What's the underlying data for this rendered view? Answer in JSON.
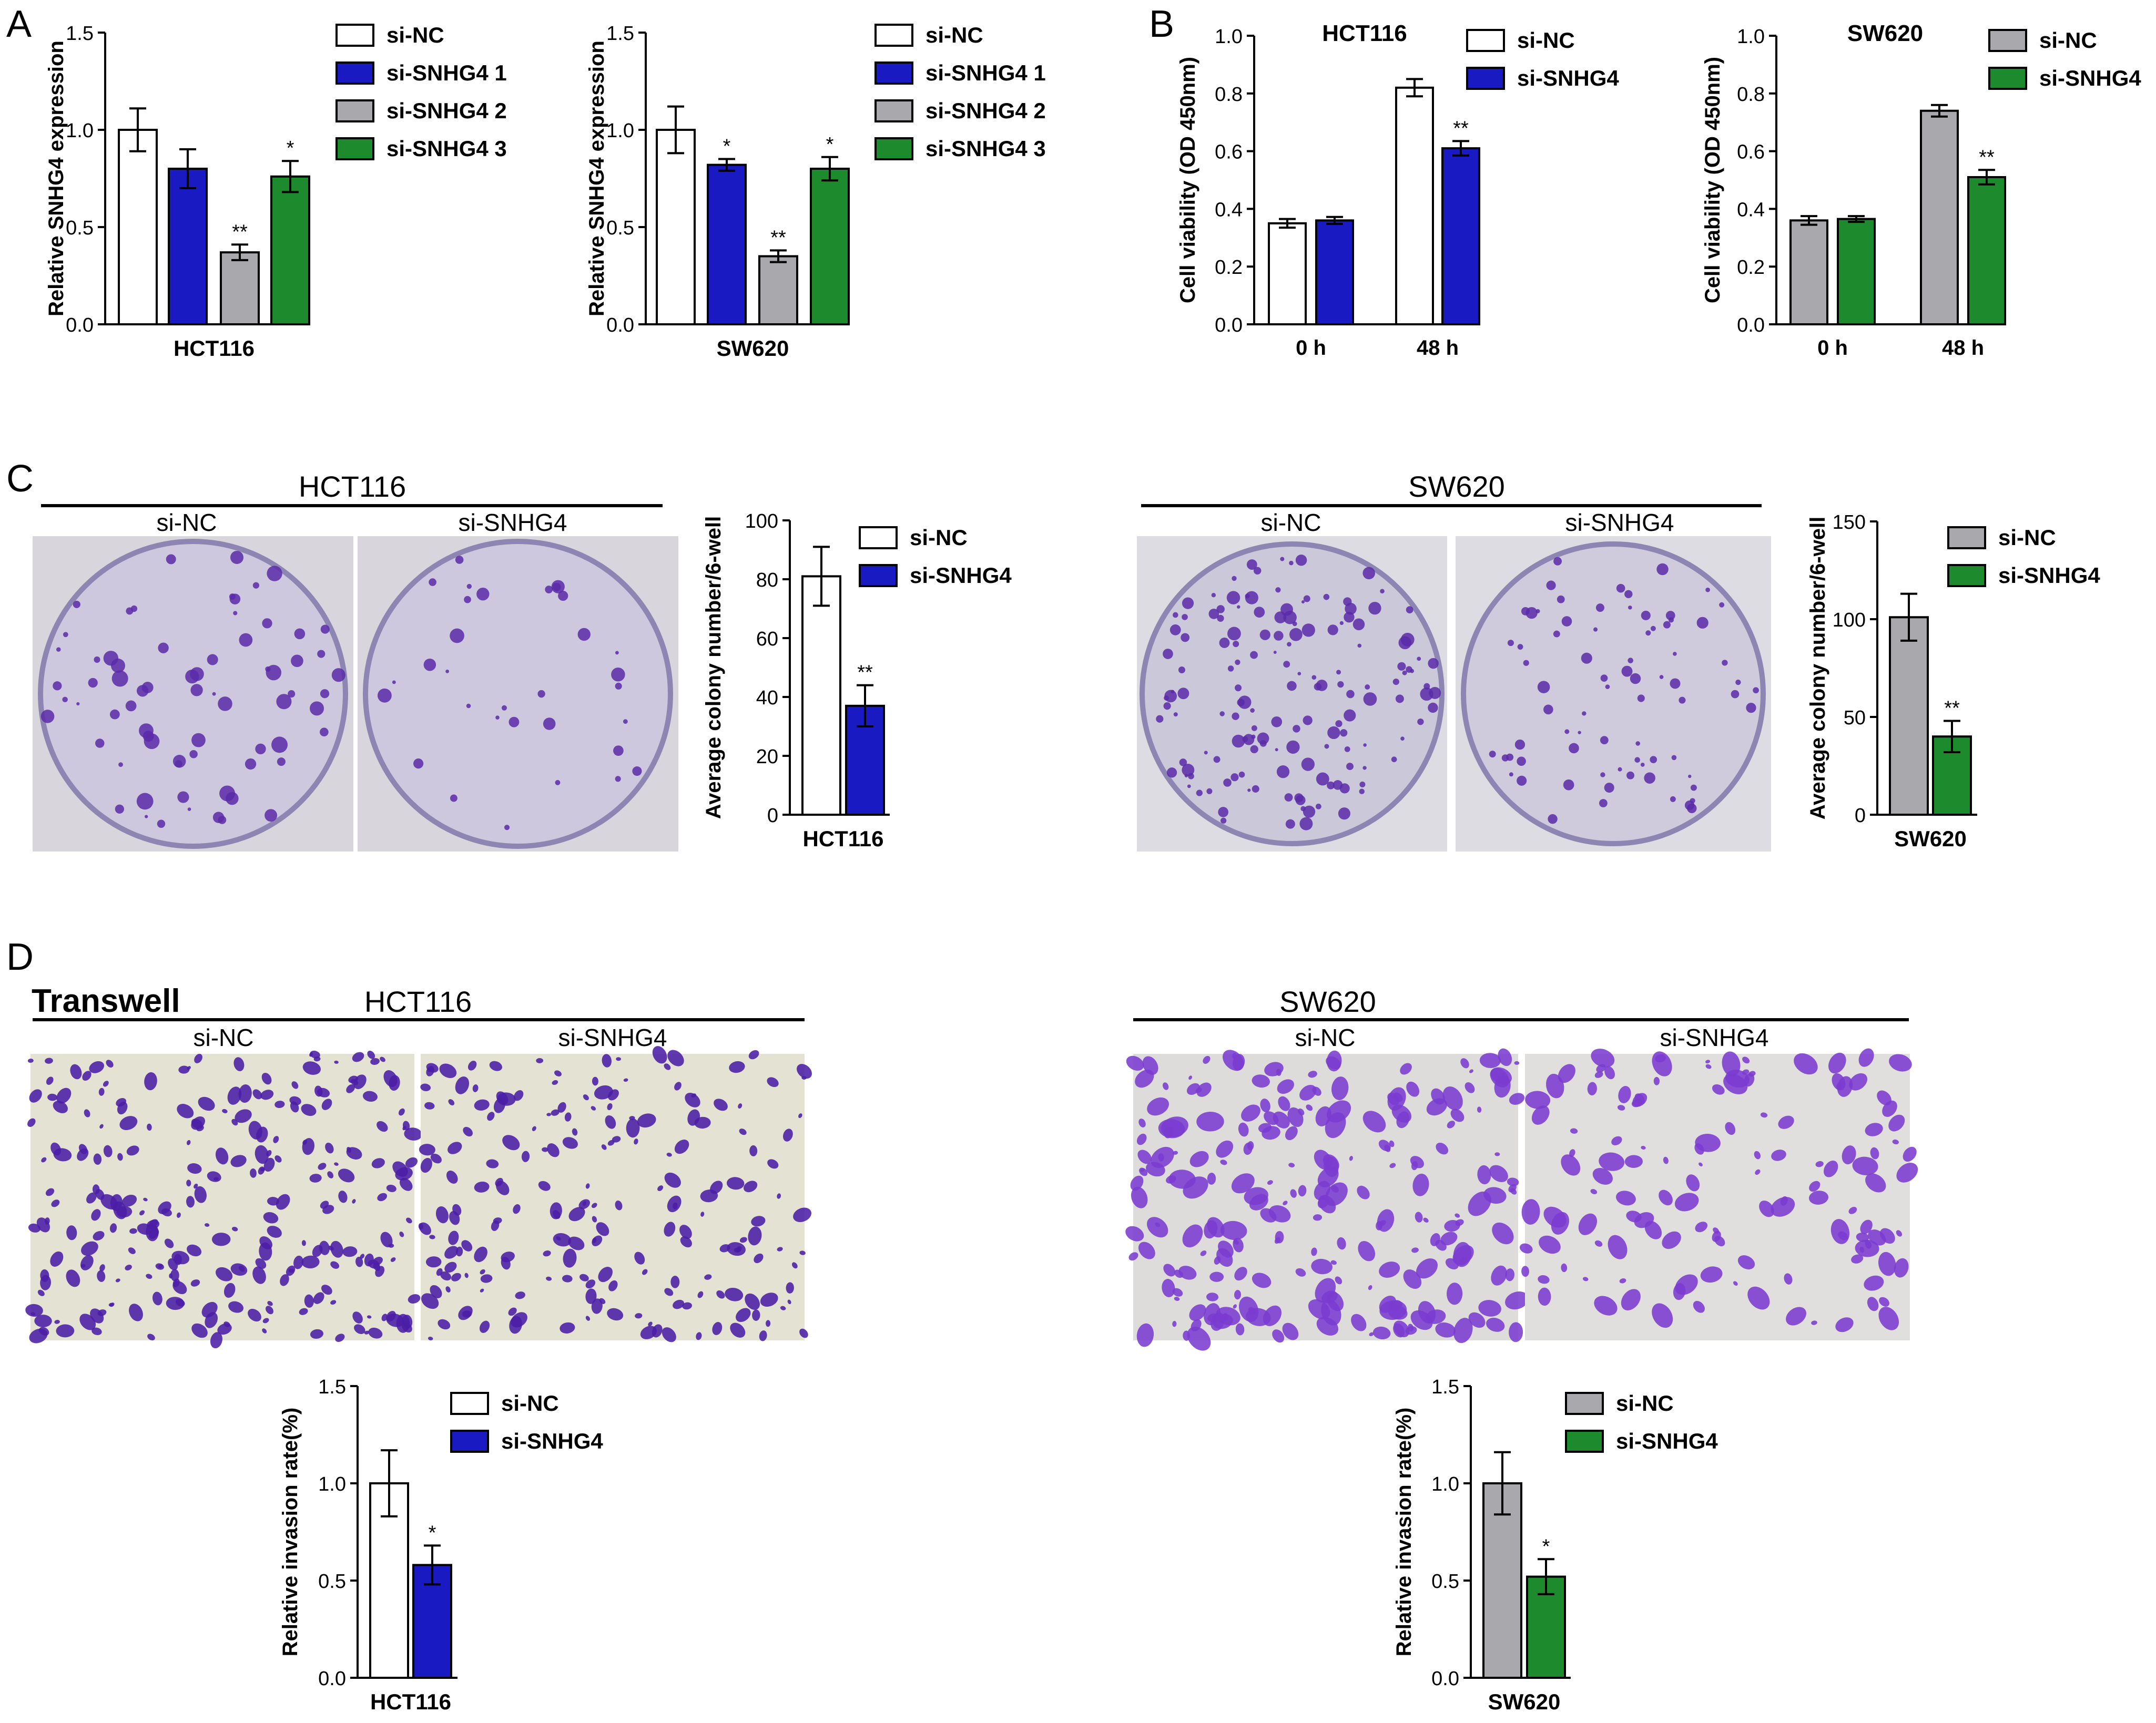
{
  "colors": {
    "white": "#ffffff",
    "blue": "#1a1ac2",
    "gray": "#a9a9ad",
    "green": "#1e8a2e",
    "axis": "#000000",
    "crystal_violet_bg": "#cfcbe0",
    "crystal_violet_cell": "#5a2aa8",
    "transwell_bg": "#e3e1d2",
    "transwell_cell": "#4b1ea6"
  },
  "panels": {
    "A": {
      "letter": "A"
    },
    "B": {
      "letter": "B"
    },
    "C": {
      "letter": "C",
      "hct_title": "HCT116",
      "hct_left": "si-NC",
      "hct_right": "si-SNHG4",
      "sw_title": "SW620",
      "sw_left": "si-NC",
      "sw_right": "si-SNHG4",
      "photo": "colony-plate-photographs"
    },
    "D": {
      "letter": "D",
      "transwell": "Transwell",
      "hct_title": "HCT116",
      "hct_left": "si-NC",
      "hct_right": "si-SNHG4",
      "sw_title": "SW620",
      "sw_left": "si-NC",
      "sw_right": "si-SNHG4",
      "photo": "transwell-micrographs"
    }
  },
  "chart_data": [
    {
      "id": "A1",
      "type": "bar",
      "panel": "A",
      "title": "",
      "xlabel": "HCT116",
      "ylabel": "Relative SNHG4 expression",
      "ylim": [
        0,
        1.5
      ],
      "yticks": [
        "0.0",
        "0.5",
        "1.0",
        "1.5"
      ],
      "legend_position": "top-right",
      "series": [
        {
          "name": "si-NC",
          "color": "white",
          "value": 1.0,
          "error": 0.11,
          "sig": ""
        },
        {
          "name": "si-SNHG4 1",
          "color": "blue",
          "value": 0.8,
          "error": 0.1,
          "sig": ""
        },
        {
          "name": "si-SNHG4 2",
          "color": "gray",
          "value": 0.37,
          "error": 0.04,
          "sig": "**"
        },
        {
          "name": "si-SNHG4 3",
          "color": "green",
          "value": 0.76,
          "error": 0.08,
          "sig": "*"
        }
      ]
    },
    {
      "id": "A2",
      "type": "bar",
      "panel": "A",
      "title": "",
      "xlabel": "SW620",
      "ylabel": "Relative SNHG4 expression",
      "ylim": [
        0,
        1.5
      ],
      "yticks": [
        "0.0",
        "0.5",
        "1.0",
        "1.5"
      ],
      "legend_position": "top-right",
      "series": [
        {
          "name": "si-NC",
          "color": "white",
          "value": 1.0,
          "error": 0.12,
          "sig": ""
        },
        {
          "name": "si-SNHG4 1",
          "color": "blue",
          "value": 0.82,
          "error": 0.03,
          "sig": "*"
        },
        {
          "name": "si-SNHG4 2",
          "color": "gray",
          "value": 0.35,
          "error": 0.03,
          "sig": "**"
        },
        {
          "name": "si-SNHG4 3",
          "color": "green",
          "value": 0.8,
          "error": 0.06,
          "sig": "*"
        }
      ]
    },
    {
      "id": "B1",
      "type": "bar",
      "panel": "B",
      "title": "HCT116",
      "xlabel": "",
      "ylabel": "Cell viability (OD 450nm)",
      "ylim": [
        0,
        1.0
      ],
      "yticks": [
        "0.0",
        "0.2",
        "0.4",
        "0.6",
        "0.8",
        "1.0"
      ],
      "categories": [
        "0 h",
        "48 h"
      ],
      "legend_position": "top-right",
      "series": [
        {
          "name": "si-NC",
          "color": "white",
          "values": [
            0.35,
            0.82
          ],
          "errors": [
            0.015,
            0.03
          ],
          "sig": [
            "",
            ""
          ]
        },
        {
          "name": "si-SNHG4",
          "color": "blue",
          "values": [
            0.36,
            0.61
          ],
          "errors": [
            0.012,
            0.025
          ],
          "sig": [
            "",
            "**"
          ]
        }
      ]
    },
    {
      "id": "B2",
      "type": "bar",
      "panel": "B",
      "title": "SW620",
      "xlabel": "",
      "ylabel": "Cell viability (OD 450nm)",
      "ylim": [
        0,
        1.0
      ],
      "yticks": [
        "0.0",
        "0.2",
        "0.4",
        "0.6",
        "0.8",
        "1.0"
      ],
      "categories": [
        "0 h",
        "48 h"
      ],
      "legend_position": "top-right",
      "series": [
        {
          "name": "si-NC",
          "color": "gray",
          "values": [
            0.36,
            0.74
          ],
          "errors": [
            0.015,
            0.02
          ],
          "sig": [
            "",
            ""
          ]
        },
        {
          "name": "si-SNHG4",
          "color": "green",
          "values": [
            0.365,
            0.51
          ],
          "errors": [
            0.01,
            0.025
          ],
          "sig": [
            "",
            "**"
          ]
        }
      ]
    },
    {
      "id": "C1",
      "type": "bar",
      "panel": "C",
      "title": "",
      "xlabel": "HCT116",
      "ylabel": "Average colony number/6-well",
      "ylim": [
        0,
        100
      ],
      "yticks": [
        "0",
        "20",
        "40",
        "60",
        "80",
        "100"
      ],
      "legend_position": "top-right",
      "series": [
        {
          "name": "si-NC",
          "color": "white",
          "value": 81,
          "error": 10,
          "sig": ""
        },
        {
          "name": "si-SNHG4",
          "color": "blue",
          "value": 37,
          "error": 7,
          "sig": "**"
        }
      ]
    },
    {
      "id": "C2",
      "type": "bar",
      "panel": "C",
      "title": "",
      "xlabel": "SW620",
      "ylabel": "Average colony number/6-well",
      "ylim": [
        0,
        150
      ],
      "yticks": [
        "0",
        "50",
        "100",
        "150"
      ],
      "legend_position": "top-right",
      "series": [
        {
          "name": "si-NC",
          "color": "gray",
          "value": 101,
          "error": 12,
          "sig": ""
        },
        {
          "name": "si-SNHG4",
          "color": "green",
          "value": 40,
          "error": 8,
          "sig": "**"
        }
      ]
    },
    {
      "id": "D1",
      "type": "bar",
      "panel": "D",
      "title": "",
      "xlabel": "HCT116",
      "ylabel": "Relative invasion rate(%)",
      "ylim": [
        0,
        1.5
      ],
      "yticks": [
        "0.0",
        "0.5",
        "1.0",
        "1.5"
      ],
      "legend_position": "top-right",
      "series": [
        {
          "name": "si-NC",
          "color": "white",
          "value": 1.0,
          "error": 0.17,
          "sig": ""
        },
        {
          "name": "si-SNHG4",
          "color": "blue",
          "value": 0.58,
          "error": 0.1,
          "sig": "*"
        }
      ]
    },
    {
      "id": "D2",
      "type": "bar",
      "panel": "D",
      "title": "",
      "xlabel": "SW620",
      "ylabel": "Relative invasion rate(%)",
      "ylim": [
        0,
        1.5
      ],
      "yticks": [
        "0.0",
        "0.5",
        "1.0",
        "1.5"
      ],
      "legend_position": "top-right",
      "series": [
        {
          "name": "si-NC",
          "color": "gray",
          "value": 1.0,
          "error": 0.16,
          "sig": ""
        },
        {
          "name": "si-SNHG4",
          "color": "green",
          "value": 0.52,
          "error": 0.09,
          "sig": "*"
        }
      ]
    }
  ]
}
